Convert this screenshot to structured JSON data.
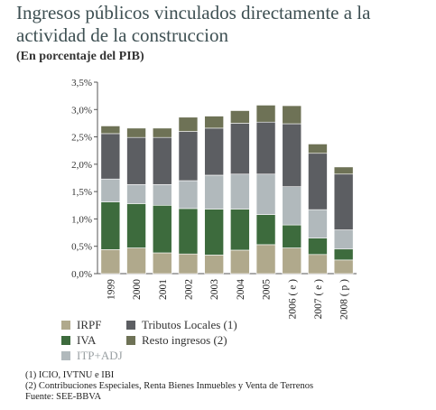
{
  "header": {
    "title_line1": "Ingresos públicos vinculados directamente a la",
    "title_line2": "actividad de la construccion",
    "subtitle": "(En porcentaje del PIB)"
  },
  "chart_data": {
    "type": "bar",
    "stacked": true,
    "categories": [
      "1999",
      "2000",
      "2001",
      "2002",
      "2003",
      "2004",
      "2005",
      "2006 ( e )",
      "2007 ( e )",
      "2008 ( p )"
    ],
    "series": [
      {
        "name": "IRPF",
        "color": "#b0a98c",
        "values": [
          0.44,
          0.47,
          0.38,
          0.36,
          0.34,
          0.43,
          0.53,
          0.47,
          0.35,
          0.25
        ]
      },
      {
        "name": "IVA",
        "color": "#3d6b3d",
        "values": [
          0.87,
          0.81,
          0.87,
          0.83,
          0.84,
          0.75,
          0.55,
          0.42,
          0.3,
          0.2
        ]
      },
      {
        "name": "ITP+ADJ",
        "color": "#b1b9bc",
        "values": [
          0.42,
          0.35,
          0.38,
          0.51,
          0.62,
          0.64,
          0.74,
          0.7,
          0.52,
          0.35
        ]
      },
      {
        "name": "Tributos Locales (1)",
        "color": "#5c5e62",
        "values": [
          0.83,
          0.86,
          0.86,
          0.9,
          0.86,
          0.93,
          0.95,
          1.15,
          1.03,
          1.02
        ]
      },
      {
        "name": "Resto ingresos (2)",
        "color": "#6e7256",
        "values": [
          0.14,
          0.17,
          0.17,
          0.26,
          0.22,
          0.23,
          0.31,
          0.33,
          0.17,
          0.13
        ]
      }
    ],
    "ylim": [
      0,
      3.5
    ],
    "yticks": [
      "0,0%",
      "0,5%",
      "1,0%",
      "1,5%",
      "2,0%",
      "2,5%",
      "3,0%",
      "3,5%"
    ],
    "grid": false,
    "legend_position": "bottom"
  },
  "legend": {
    "irpf": "IRPF",
    "iva": "IVA",
    "itp": "ITP+ADJ",
    "tributos": "Tributos Locales (1)",
    "resto": "Resto ingresos (2)"
  },
  "notes": {
    "note1": "(1) ICIO, IVTNU e IBI",
    "note2": "(2) Contribuciones Especiales, Renta Bienes Inmuebles y Venta de Terrenos",
    "source": "Fuente: SEE-BBVA"
  }
}
